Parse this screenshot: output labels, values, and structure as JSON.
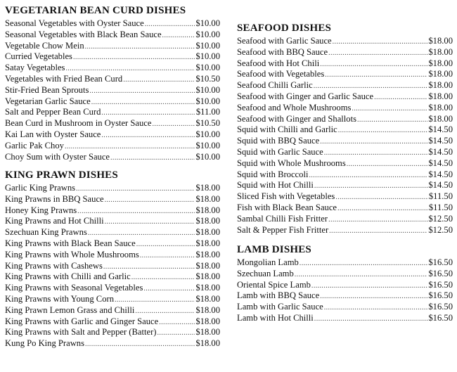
{
  "sections": [
    {
      "title": "VEGETARIAN BEAN CURD DISHES",
      "items": [
        {
          "name": "Seasonal Vegetables with Oyster Sauce",
          "price": "$10.00"
        },
        {
          "name": "Seasonal Vegetables with Black Bean Sauce",
          "price": "$10.00"
        },
        {
          "name": "Vegetable Chow Mein",
          "price": "$10.00"
        },
        {
          "name": "Curried Vegetables",
          "price": "$10.00"
        },
        {
          "name": "Satay Vegetables",
          "price": "$10.00"
        },
        {
          "name": "Vegetables with Fried Bean Curd",
          "price": "$10.50"
        },
        {
          "name": "Stir-Fried Bean Sprouts",
          "price": "$10.00"
        },
        {
          "name": "Vegetarian Garlic Sauce",
          "price": "$10.00"
        },
        {
          "name": "Salt and Pepper Bean Curd",
          "price": "$11.00"
        },
        {
          "name": "Bean Curd in Mushroom in Oyster Sauce",
          "price": "$10.50"
        },
        {
          "name": "Kai Lan with Oyster Sauce",
          "price": "$10.00"
        },
        {
          "name": "Garlic Pak Choy",
          "price": "$10.00"
        },
        {
          "name": "Choy Sum with Oyster Sauce",
          "price": "$10.00"
        }
      ]
    },
    {
      "title": "KING PRAWN DISHES",
      "items": [
        {
          "name": "Garlic King Prawns",
          "price": "$18.00"
        },
        {
          "name": "King Prawns in BBQ Sauce",
          "price": "$18.00"
        },
        {
          "name": "Honey King Prawns",
          "price": "$18.00"
        },
        {
          "name": "King Prawns and Hot Chilli",
          "price": "$18.00"
        },
        {
          "name": "Szechuan King Prawns",
          "price": "$18.00"
        },
        {
          "name": "King Prawns with Black Bean Sauce",
          "price": "$18.00"
        },
        {
          "name": "King Prawns with Whole Mushrooms",
          "price": "$18.00"
        },
        {
          "name": "King Prawns with Cashews",
          "price": "$18.00"
        },
        {
          "name": "King Prawns with Chilli and Garlic",
          "price": "$18.00"
        },
        {
          "name": "King Prawns with Seasonal Vegetables",
          "price": "$18.00"
        },
        {
          "name": "King Prawns with Young Corn",
          "price": "$18.00"
        },
        {
          "name": "King Prawn Lemon Grass and Chilli",
          "price": "$18.00"
        },
        {
          "name": "King Prawns with Garlic and Ginger Sauce",
          "price": "$18.00"
        },
        {
          "name": "King Prawns with Salt and Pepper (Batter)",
          "price": "$18.00"
        },
        {
          "name": "Kung Po King Prawns",
          "price": "$18.00"
        }
      ]
    },
    {
      "title": "SEAFOOD DISHES",
      "items": [
        {
          "name": "Seafood with Garlic Sauce",
          "price": "$18.00"
        },
        {
          "name": "Seafood with BBQ Sauce",
          "price": "$18.00"
        },
        {
          "name": "Seafood with Hot Chili",
          "price": "$18.00"
        },
        {
          "name": "Seafood with Vegetables",
          "price": "$18.00"
        },
        {
          "name": "Seafood Chilli Garlic",
          "price": "$18.00"
        },
        {
          "name": "Seafood with Ginger and Garlic Sauce",
          "price": "$18.00"
        },
        {
          "name": "Seafood and Whole Mushrooms",
          "price": "$18.00"
        },
        {
          "name": "Seafood with Ginger and Shallots",
          "price": "$18.00"
        },
        {
          "name": "Squid with Chilli and Garlic",
          "price": "$14.50"
        },
        {
          "name": "Squid with BBQ Sauce",
          "price": "$14.50"
        },
        {
          "name": "Squid with Garlic Sauce",
          "price": "$14.50"
        },
        {
          "name": "Squid with Whole Mushrooms",
          "price": "$14.50"
        },
        {
          "name": "Squid with Broccoli",
          "price": "$14.50"
        },
        {
          "name": "Squid with Hot Chilli",
          "price": "$14.50"
        },
        {
          "name": "Sliced Fish with Vegetables",
          "price": "$11.50"
        },
        {
          "name": "Fish with Black Bean Sauce",
          "price": "$11.50"
        },
        {
          "name": "Sambal Chilli Fish Fritter",
          "price": "$12.50"
        },
        {
          "name": "Salt & Pepper Fish Fritter",
          "price": "$12.50"
        }
      ]
    },
    {
      "title": "LAMB DISHES",
      "items": [
        {
          "name": "Mongolian Lamb",
          "price": "$16.50"
        },
        {
          "name": "Szechuan Lamb",
          "price": "$16.50"
        },
        {
          "name": "Oriental Spice Lamb",
          "price": "$16.50"
        },
        {
          "name": "Lamb with BBQ Sauce",
          "price": "$16.50"
        },
        {
          "name": "Lamb with Garlic Sauce",
          "price": "$16.50"
        },
        {
          "name": "Lamb with Hot Chilli",
          "price": "$16.50"
        }
      ]
    }
  ]
}
